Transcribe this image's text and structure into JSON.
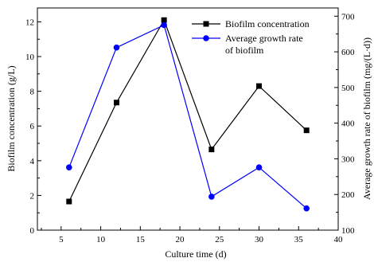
{
  "chart_data": {
    "type": "line",
    "xlabel": "Culture time (d)",
    "ylabel_left": "Biofilm concentration (g/L)",
    "ylabel_right": "Average growth rate of biofilm (mg/(L·d))",
    "x_ticks": [
      5,
      10,
      15,
      20,
      25,
      30,
      35,
      40
    ],
    "x_range": [
      2,
      40
    ],
    "y_left_ticks": [
      0,
      2,
      4,
      6,
      8,
      10,
      12
    ],
    "y_left_range": [
      0,
      12.8
    ],
    "y_right_ticks": [
      100,
      200,
      300,
      400,
      500,
      600,
      700
    ],
    "y_right_range": [
      100,
      723
    ],
    "grid": false,
    "legend_position": "top-right",
    "series": [
      {
        "name": "Biofilm concentration",
        "axis": "left",
        "color": "#000000",
        "marker": "square",
        "x": [
          6,
          12,
          18,
          24,
          30,
          36
        ],
        "y": [
          1.65,
          7.35,
          12.1,
          4.65,
          8.3,
          5.75
        ]
      },
      {
        "name": "Average growth rate\nof biofilm",
        "legend_lines": [
          "Average growth rate",
          "of biofilm"
        ],
        "axis": "right",
        "color": "#0000FF",
        "marker": "circle",
        "x": [
          6,
          12,
          18,
          24,
          30,
          36
        ],
        "y": [
          276,
          612,
          675,
          194,
          276,
          161
        ]
      }
    ]
  }
}
